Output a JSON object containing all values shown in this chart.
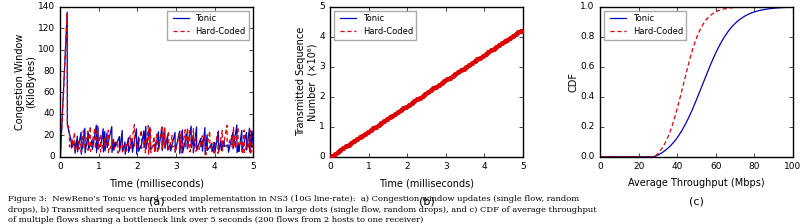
{
  "fig_width": 8.05,
  "fig_height": 2.24,
  "dpi": 100,
  "subplot_a": {
    "xlabel": "Time (milliseconds)",
    "ylabel": "Congestion Window\n(KiloBytes)",
    "label_a": "(a)",
    "xlim": [
      0,
      5
    ],
    "ylim": [
      0,
      140
    ],
    "yticks": [
      0,
      20,
      40,
      60,
      80,
      100,
      120,
      140
    ],
    "xticks": [
      0,
      1,
      2,
      3,
      4,
      5
    ],
    "tonic_color": "#0000bb",
    "hardcoded_color": "#dd0000"
  },
  "subplot_b": {
    "xlabel": "Time (milliseconds)",
    "ylabel": "Transmitted Sequence\nNumber  (×10⁶)",
    "label_b": "(b)",
    "xlim": [
      0,
      5
    ],
    "ylim": [
      0,
      5
    ],
    "yticks": [
      0,
      1,
      2,
      3,
      4,
      5
    ],
    "xticks": [
      0,
      1,
      2,
      3,
      4,
      5
    ],
    "tonic_color": "#0000bb",
    "hardcoded_color": "#dd0000"
  },
  "subplot_c": {
    "xlabel": "Average Throughput (Mbps)",
    "ylabel": "CDF",
    "label_c": "(c)",
    "xlim": [
      0,
      100
    ],
    "ylim": [
      0,
      1.0
    ],
    "yticks": [
      0.0,
      0.2,
      0.4,
      0.6,
      0.8,
      1.0
    ],
    "xticks": [
      0,
      20,
      40,
      60,
      80,
      100
    ],
    "tonic_color": "#0000bb",
    "hardcoded_color": "#dd0000"
  },
  "legend_tonic": "Tonic",
  "legend_hardcoded": "Hard-Coded",
  "caption": "Figure 3:  NewReno’s Tonic vs hard-coded implementation in NS3 (10G line-rate):  a) Congestion window updates (single flow, random\ndrops), b) Transmitted sequence numbers with retransmission in large dots (single flow, random drops), and c) CDF of average throughput\nof multiple flows sharing a bottleneck link over 5 seconds (200 flows from 2 hosts to one receiver)"
}
